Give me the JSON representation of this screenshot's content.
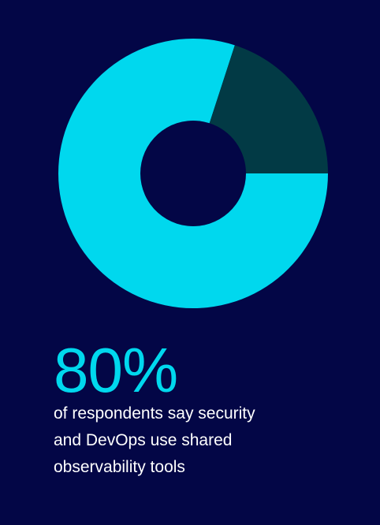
{
  "chart_data": {
    "type": "pie",
    "variant": "donut",
    "slices": [
      {
        "value": 80,
        "color": "#00d8ee"
      },
      {
        "value": 20,
        "color": "#023a45"
      }
    ],
    "title": "",
    "legend": "none"
  },
  "stat": {
    "value": "80%",
    "caption": " of respondents say security\nand DevOps use shared\nobservability tools"
  },
  "colors": {
    "background": "#030646",
    "accent": "#00d8ee",
    "slice_secondary": "#023a45",
    "caption_text": "#ffffff"
  }
}
